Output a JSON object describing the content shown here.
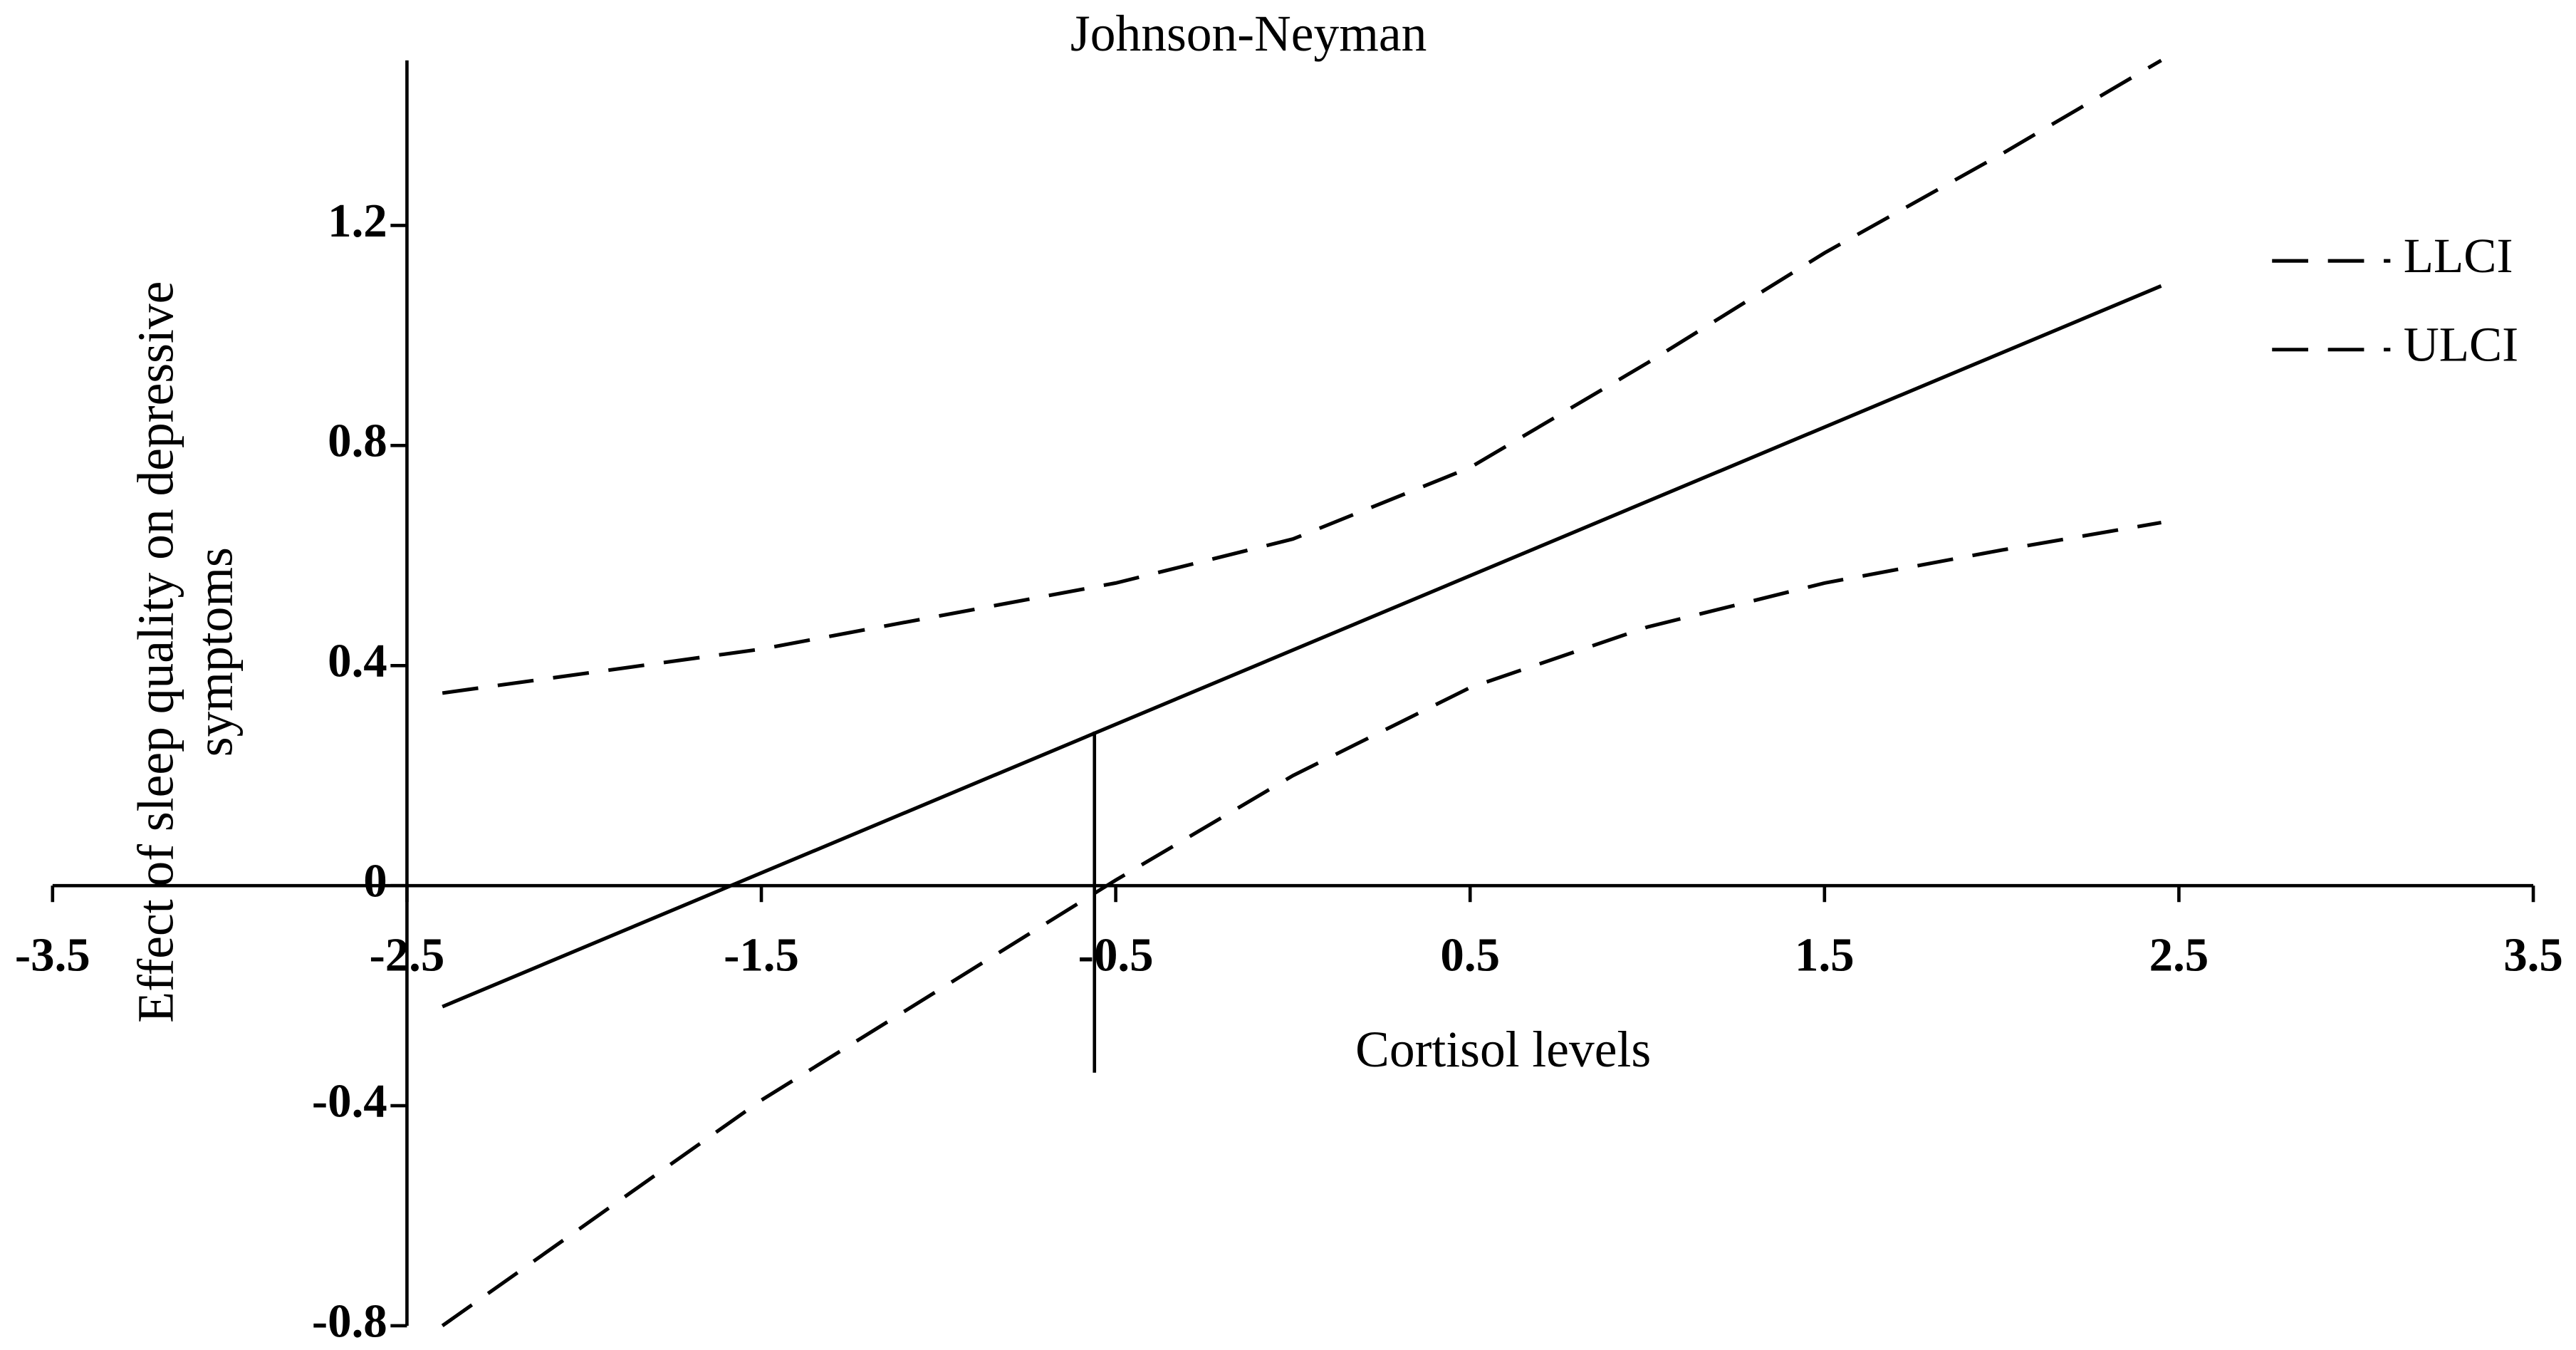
{
  "chart_data": {
    "type": "line",
    "title": "Johnson-Neyman",
    "x_label": "Cortisol levels",
    "y_label": [
      "Effect of sleep quality on depressive",
      "symptoms"
    ],
    "xlim": [
      -3.5,
      3.5
    ],
    "ylim": [
      -0.8,
      1.5
    ],
    "xticks": [
      -3.5,
      -2.5,
      -1.5,
      -0.5,
      0.5,
      1.5,
      2.5,
      3.5
    ],
    "yticks": [
      -0.8,
      -0.4,
      0,
      0.4,
      0.8,
      1.2
    ],
    "legend": "upper right",
    "series": [
      {
        "color": "#000000",
        "style": "solid",
        "x": [
          -2.4,
          2.45
        ],
        "values": [
          -0.22,
          1.09
        ]
      },
      {
        "name": "LLCI",
        "color": "#000000",
        "style": "dashed",
        "x": [
          -2.4,
          -1.5,
          -0.5,
          0,
          0.5,
          1,
          1.5,
          2,
          2.45
        ],
        "values": [
          -0.8,
          -0.39,
          0.01,
          0.2,
          0.36,
          0.47,
          0.55,
          0.61,
          0.66
        ]
      },
      {
        "name": "ULCI",
        "color": "#000000",
        "style": "dashed",
        "x": [
          -2.4,
          -1.5,
          -0.5,
          0,
          0.5,
          1,
          1.5,
          2,
          2.45
        ],
        "values": [
          0.35,
          0.43,
          0.55,
          0.63,
          0.76,
          0.95,
          1.15,
          1.33,
          1.5
        ]
      }
    ],
    "reference_line": {
      "x": -0.56,
      "ymin": -0.34,
      "ymax": 0.28
    }
  }
}
